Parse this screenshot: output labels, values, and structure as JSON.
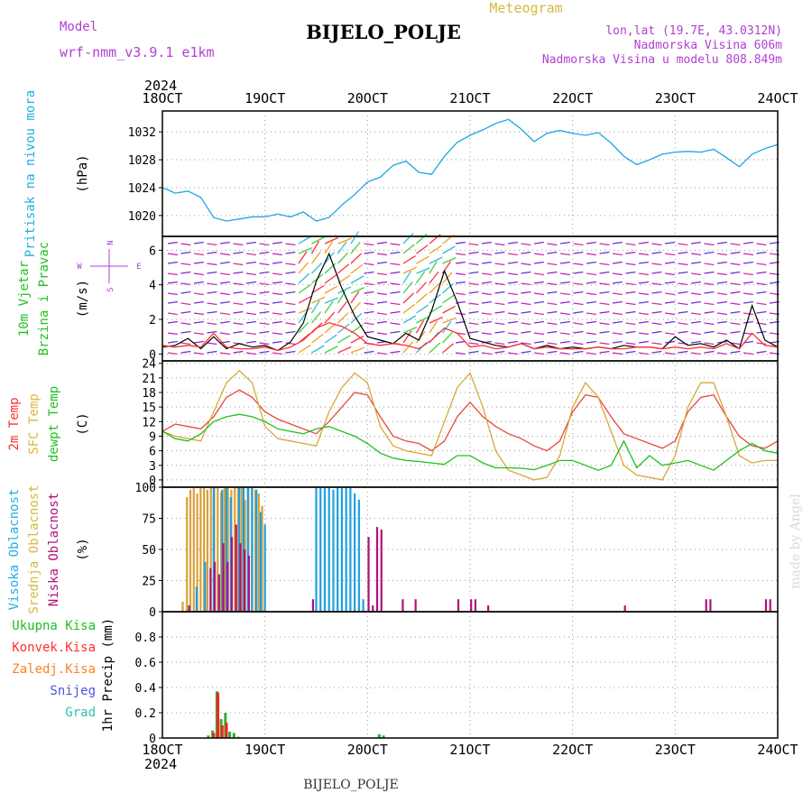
{
  "header": {
    "model_label": "Model",
    "model_name": "wrf-nmm_v3.9.1 e1km",
    "title": "BIJELO_POLJE",
    "subtitle": "Meteogram",
    "coords": "lon,lat (19.7E, 43.0312N)",
    "elevation": "Nadmorska Visina 606m",
    "model_elevation": "Nadmorska Visina u modelu 808.849m",
    "footer_title": "BIJELO_POLJE",
    "credit": "made by Angel"
  },
  "colors": {
    "pressure": "#1ea5e6",
    "wind": "#000000",
    "wind_gust": "#ff3030",
    "t2m": "#e8483a",
    "sfc_temp": "#d8a838",
    "dewpoint": "#20c020",
    "cloud_high": "#1f9ee0",
    "cloud_mid": "#d8a03a",
    "cloud_low": "#b0107a",
    "precip_total": "#30b030",
    "precip_conv": "#ff2020",
    "precip_frozen": "#ff8020",
    "snow": "#5050e0",
    "graupel": "#30c0b0",
    "label_purple": "#b040d0",
    "label_yellow": "#d8b840",
    "label_cyan": "#20b0e0",
    "label_green": "#20c020",
    "label_red": "#ff3030"
  },
  "chart_data": {
    "type": "line",
    "year": "2024",
    "x_ticks": [
      "18OCT",
      "19OCT",
      "20OCT",
      "21OCT",
      "22OCT",
      "23OCT",
      "24OCT"
    ],
    "panels": [
      {
        "id": "pressure",
        "labels": [
          "Pritisak na nivou mora"
        ],
        "unit": "(hPa)",
        "ylim": [
          1017,
          1035
        ],
        "yticks": [
          1020,
          1024,
          1028,
          1032
        ],
        "series": [
          {
            "name": "Pritisak na nivou mora",
            "x": [
              0,
              3,
              6,
              9,
              12,
              15,
              18,
              21,
              24,
              27,
              30,
              33,
              36,
              39,
              42,
              45,
              48,
              51,
              54,
              57,
              60,
              63,
              66,
              69,
              72,
              75,
              78,
              81,
              84,
              87,
              90,
              93,
              96,
              99,
              102,
              105,
              108,
              111,
              114,
              117,
              120,
              123,
              126,
              129,
              132,
              135,
              138,
              141,
              144
            ],
            "y": [
              1024,
              1023.2,
              1023.5,
              1022.6,
              1019.7,
              1019.2,
              1019.5,
              1019.8,
              1019.8,
              1020.2,
              1019.8,
              1020.5,
              1019.2,
              1019.7,
              1021.5,
              1023,
              1024.8,
              1025.5,
              1027.2,
              1027.8,
              1026.2,
              1025.9,
              1028.5,
              1030.5,
              1031.5,
              1032.3,
              1033.2,
              1033.8,
              1032.4,
              1030.6,
              1031.8,
              1032.2,
              1031.8,
              1031.5,
              1031.9,
              1030.4,
              1028.5,
              1027.3,
              1028,
              1028.8,
              1029.1,
              1029.2,
              1029.1,
              1029.5,
              1028.3,
              1027,
              1028.8,
              1029.6,
              1030.2
            ]
          }
        ]
      },
      {
        "id": "wind",
        "labels": [
          "10m Vjetar",
          "Brzina i Pravac"
        ],
        "unit": "(m/s)",
        "ylim": [
          -0.4,
          6.8
        ],
        "yticks": [
          0,
          2,
          4,
          6
        ],
        "compass": {
          "north": "N",
          "south": "S",
          "east": "E",
          "west": "W"
        },
        "series": [
          {
            "name": "10m Vjetar",
            "x": [
              0,
              3,
              6,
              9,
              12,
              15,
              18,
              21,
              24,
              27,
              30,
              33,
              36,
              39,
              42,
              45,
              48,
              51,
              54,
              57,
              60,
              63,
              66,
              69,
              72,
              75,
              78,
              81,
              84,
              87,
              90,
              93,
              96,
              99,
              102,
              105,
              108,
              111,
              114,
              117,
              120,
              123,
              126,
              129,
              132,
              135,
              138,
              141,
              144
            ],
            "y": [
              0.4,
              0.5,
              0.9,
              0.3,
              1.0,
              0.3,
              0.6,
              0.4,
              0.5,
              0.2,
              0.7,
              1.8,
              4.2,
              5.8,
              3.8,
              2.2,
              1.0,
              0.8,
              0.6,
              1.2,
              0.8,
              2.5,
              4.8,
              3.0,
              0.9,
              0.7,
              0.5,
              0.4,
              0.6,
              0.3,
              0.5,
              0.3,
              0.4,
              0.3,
              0.4,
              0.3,
              0.5,
              0.4,
              0.4,
              0.3,
              1.0,
              0.5,
              0.6,
              0.4,
              0.8,
              0.3,
              2.8,
              0.8,
              0.4
            ]
          },
          {
            "name": "Udar vjetra",
            "x": [
              0,
              3,
              6,
              9,
              12,
              15,
              18,
              21,
              24,
              27,
              30,
              33,
              36,
              39,
              42,
              45,
              48,
              51,
              54,
              57,
              60,
              63,
              66,
              69,
              72,
              75,
              78,
              81,
              84,
              87,
              90,
              93,
              96,
              99,
              102,
              105,
              108,
              111,
              114,
              117,
              120,
              123,
              126,
              129,
              132,
              135,
              138,
              141,
              144
            ],
            "y": [
              0.5,
              0.4,
              0.5,
              0.4,
              1.2,
              0.4,
              0.3,
              0.3,
              0.4,
              0.2,
              0.4,
              0.8,
              1.5,
              1.8,
              1.6,
              1.2,
              0.6,
              0.5,
              0.6,
              0.5,
              0.3,
              0.8,
              1.5,
              1.2,
              0.4,
              0.5,
              0.3,
              0.4,
              0.6,
              0.3,
              0.4,
              0.3,
              0.3,
              0.3,
              0.4,
              0.3,
              0.3,
              0.4,
              0.4,
              0.3,
              0.4,
              0.3,
              0.4,
              0.3,
              0.6,
              0.3,
              1.2,
              0.5,
              0.4
            ]
          }
        ]
      },
      {
        "id": "temperature",
        "labels": [
          "2m Temp",
          "SFC Temp",
          "dewpt Temp"
        ],
        "unit": "(C)",
        "ylim": [
          -1.5,
          24.5
        ],
        "yticks": [
          0,
          3,
          6,
          9,
          12,
          15,
          18,
          21,
          24
        ],
        "series": [
          {
            "name": "2m Temp",
            "x": [
              0,
              3,
              6,
              9,
              12,
              15,
              18,
              21,
              24,
              27,
              30,
              33,
              36,
              39,
              42,
              45,
              48,
              51,
              54,
              57,
              60,
              63,
              66,
              69,
              72,
              75,
              78,
              81,
              84,
              87,
              90,
              93,
              96,
              99,
              102,
              105,
              108,
              111,
              114,
              117,
              120,
              123,
              126,
              129,
              132,
              135,
              138,
              141,
              144
            ],
            "y": [
              10,
              11.5,
              11,
              10.5,
              13,
              17,
              18.5,
              17,
              14,
              12.5,
              11.5,
              10.5,
              9.5,
              12,
              15,
              18,
              17.5,
              13,
              9,
              8,
              7.5,
              6,
              8,
              13,
              16,
              13,
              11,
              9.5,
              8.5,
              7,
              6,
              8,
              14,
              17.5,
              17,
              13,
              9.5,
              8.5,
              7.5,
              6.5,
              8,
              14,
              17,
              17.5,
              13,
              9,
              7,
              6.5,
              8
            ]
          },
          {
            "name": "SFC Temp",
            "x": [
              0,
              3,
              6,
              9,
              12,
              15,
              18,
              21,
              24,
              27,
              30,
              33,
              36,
              39,
              42,
              45,
              48,
              51,
              54,
              57,
              60,
              63,
              66,
              69,
              72,
              75,
              78,
              81,
              84,
              87,
              90,
              93,
              96,
              99,
              102,
              105,
              108,
              111,
              114,
              117,
              120,
              123,
              126,
              129,
              132,
              135,
              138,
              141,
              144
            ],
            "y": [
              10,
              9,
              8.5,
              8,
              14,
              20,
              22.5,
              20,
              11,
              8.5,
              8,
              7.5,
              7,
              14,
              19,
              22,
              20,
              11,
              7,
              6,
              5.5,
              5,
              12,
              19,
              22,
              15,
              6,
              2,
              1,
              0,
              0.5,
              5,
              15,
              20,
              17,
              10,
              3,
              1,
              0.5,
              0,
              5,
              15,
              20,
              20,
              13,
              5,
              3.5,
              4,
              4
            ]
          },
          {
            "name": "dewpt Temp",
            "x": [
              0,
              3,
              6,
              9,
              12,
              15,
              18,
              21,
              24,
              27,
              30,
              33,
              36,
              39,
              42,
              45,
              48,
              51,
              54,
              57,
              60,
              63,
              66,
              69,
              72,
              75,
              78,
              81,
              84,
              87,
              90,
              93,
              96,
              99,
              102,
              105,
              108,
              111,
              114,
              117,
              120,
              123,
              126,
              129,
              132,
              135,
              138,
              141,
              144
            ],
            "y": [
              10,
              8.5,
              8,
              9.5,
              12,
              13,
              13.5,
              13,
              12,
              10.5,
              10,
              9.5,
              10.5,
              11,
              10,
              9,
              7.5,
              5.5,
              4.5,
              4,
              3.8,
              3.5,
              3.2,
              5,
              5,
              3.5,
              2.5,
              2.5,
              2.4,
              2.1,
              3,
              4,
              4,
              3,
              2,
              3,
              8,
              2.5,
              5,
              3,
              3.5,
              4,
              3,
              2,
              4,
              6,
              7.5,
              6,
              5.5
            ]
          }
        ]
      },
      {
        "id": "clouds",
        "type": "bar",
        "labels": [
          "Visoka Oblacnost",
          "Srednja Oblacnost",
          "Niska Oblacnost"
        ],
        "unit": "(%)",
        "ylim": [
          0,
          100
        ],
        "yticks": [
          0,
          25,
          50,
          75,
          100
        ],
        "series": [
          {
            "name": "Srednja Oblacnost",
            "x": [
              5,
              6,
              6.8,
              7.6,
              8.4,
              9.2,
              10,
              10.8,
              11.6,
              12.4,
              13.2,
              14,
              14.8,
              15.6,
              16.4,
              17.2,
              18,
              18.8,
              19.6,
              20.4,
              21.2,
              22,
              22.8,
              23.6
            ],
            "y": [
              8,
              92,
              98,
              100,
              95,
              100,
              100,
              98,
              100,
              100,
              100,
              96,
              100,
              100,
              98,
              100,
              100,
              100,
              90,
              100,
              100,
              98,
              95,
              85
            ]
          },
          {
            "name": "Visoka Oblacnost",
            "x": [
              8,
              10,
              12,
              14,
              15,
              16,
              18,
              19,
              20,
              21,
              22,
              23,
              24,
              36,
              37,
              38,
              39,
              40,
              41,
              42,
              43,
              44,
              45,
              46,
              47
            ],
            "y": [
              20,
              40,
              100,
              98,
              100,
              92,
              100,
              100,
              100,
              100,
              98,
              80,
              70,
              100,
              100,
              100,
              100,
              98,
              100,
              100,
              100,
              100,
              95,
              90,
              10
            ]
          },
          {
            "name": "Niska Oblacnost",
            "x": [
              6,
              11,
              12,
              13,
              14,
              15,
              16,
              17,
              18,
              19,
              20,
              35,
              48,
              49,
              50,
              51,
              56,
              59,
              69,
              72,
              73,
              76,
              108,
              127,
              128,
              141,
              142
            ],
            "y": [
              5,
              35,
              40,
              30,
              55,
              40,
              60,
              70,
              55,
              50,
              45,
              10,
              60,
              5,
              68,
              66,
              10,
              10,
              10,
              10,
              10,
              5,
              5,
              10,
              10,
              10,
              10
            ]
          }
        ]
      },
      {
        "id": "precip",
        "type": "bar",
        "labels": [
          "Ukupna Kisa",
          "Konvek.Kisa",
          "Zaledj.Kisa",
          "Snijeg",
          "Grad"
        ],
        "unit": "1hr Precip (mm)",
        "ylim": [
          0,
          1.0
        ],
        "yticks": [
          0,
          0.2,
          0.4,
          0.6,
          0.8
        ],
        "series": [
          {
            "name": "Ukupna Kisa",
            "x": [
              11,
              12,
              13,
              14,
              15,
              16,
              17,
              18,
              51,
              52
            ],
            "y": [
              0.02,
              0.06,
              0.37,
              0.15,
              0.2,
              0.05,
              0.04,
              0.01,
              0.03,
              0.02
            ]
          },
          {
            "name": "Konvek.Kisa",
            "x": [
              12,
              13,
              14,
              15
            ],
            "y": [
              0.04,
              0.36,
              0.1,
              0.12
            ]
          }
        ]
      }
    ]
  }
}
